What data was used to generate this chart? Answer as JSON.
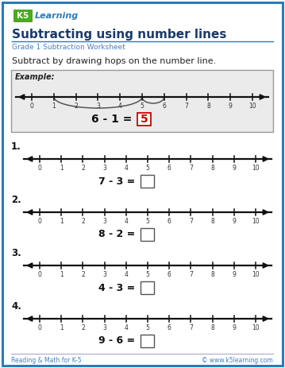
{
  "title": "Subtracting using number lines",
  "subtitle": "Grade 1 Subtraction Worksheet",
  "instruction": "Subtract by drawing hops on the number line.",
  "background_color": "#ffffff",
  "border_color": "#2b7bba",
  "example_label": "Example:",
  "example_equation": "6 - 1 = ",
  "example_answer": "5",
  "problems": [
    {
      "number": "1.",
      "equation": "7 - 3 = "
    },
    {
      "number": "2.",
      "equation": "8 - 2 = "
    },
    {
      "number": "3.",
      "equation": "4 - 3 = "
    },
    {
      "number": "4.",
      "equation": "9 - 6 = "
    }
  ],
  "footer_left": "Reading & Math for K-5",
  "footer_right": "© www.k5learning.com",
  "title_color": "#1a3a6b",
  "subtitle_color": "#4a7fc1",
  "answer_red": "#cc0000",
  "line_color": "#111111",
  "tick_color": "#333333",
  "example_bg": "#ebebeb",
  "example_border": "#999999",
  "problem_num_color": "#111111",
  "eq_color": "#111111",
  "box_edge_color": "#555555",
  "footer_color": "#4a7fc1",
  "footer_line_color": "#aaaacc",
  "logo_green": "#4aaa22",
  "logo_blue": "#2b7bba",
  "logo_k5_bg": "#4aaa22"
}
